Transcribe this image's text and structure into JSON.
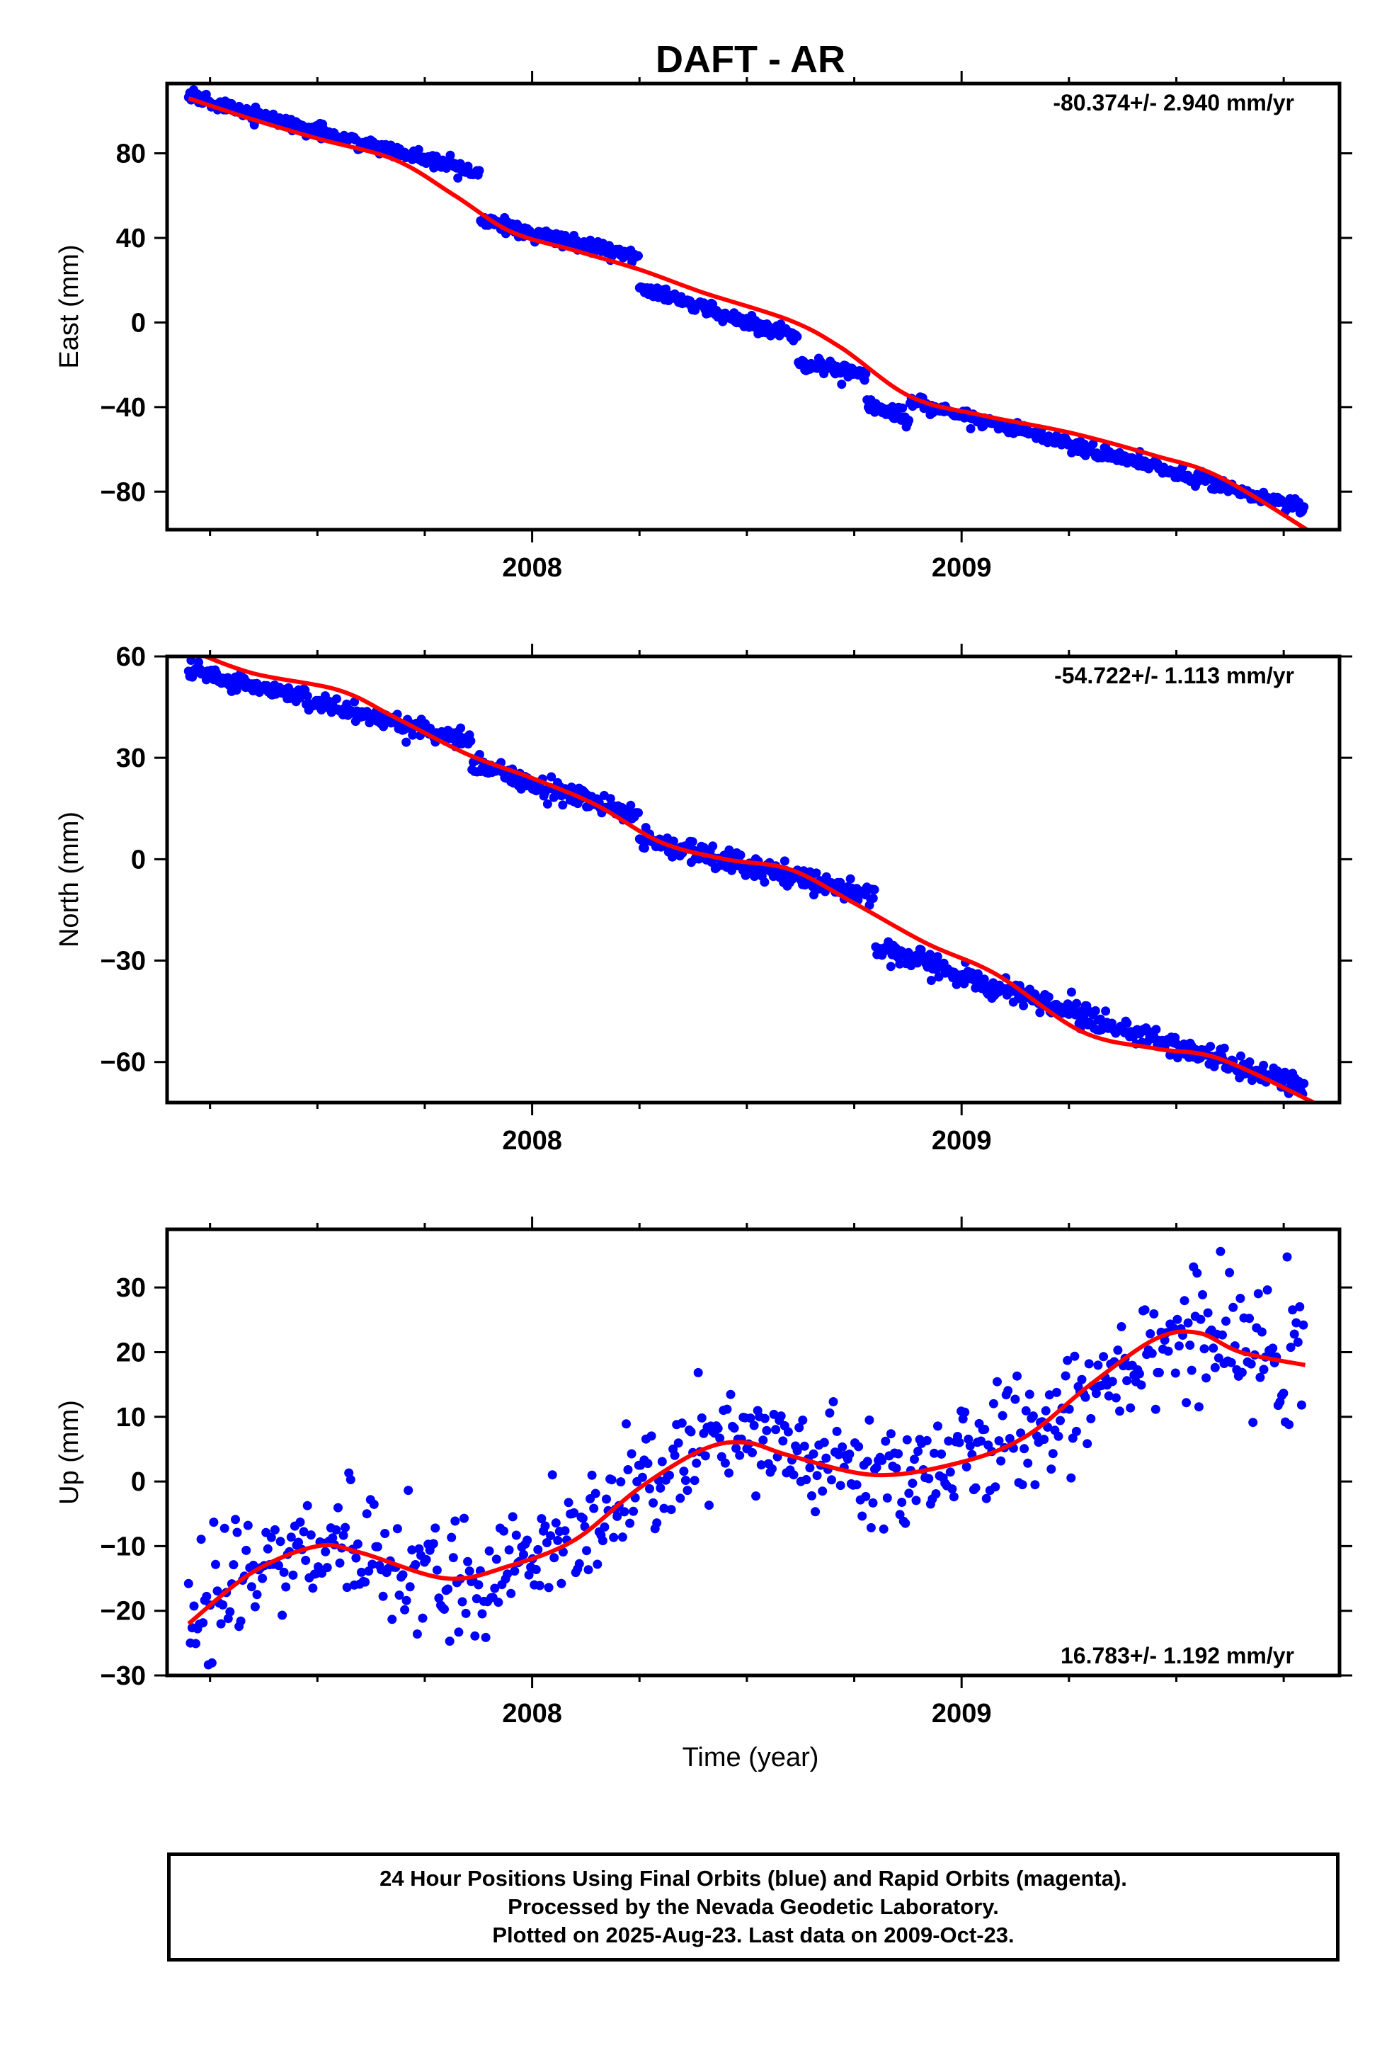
{
  "title": "DAFT - AR",
  "xlabel": "Time (year)",
  "footer": {
    "line1": "24 Hour Positions Using Final Orbits (blue) and Rapid Orbits (magenta).",
    "line2": "Processed by the Nevada Geodetic Laboratory.",
    "line3": "Plotted on 2025-Aug-23. Last data on 2009-Oct-23."
  },
  "colors": {
    "data": "#0000ff",
    "model": "#ff0000",
    "axes": "#000000",
    "background": "#ffffff"
  },
  "chart_data": [
    {
      "type": "scatter",
      "ylabel": "East (mm)",
      "rate_text": "-80.374+/- 2.940 mm/yr",
      "xlim": [
        2007.15,
        2009.88
      ],
      "ylim": [
        -98,
        113
      ],
      "yticks": [
        -80,
        -40,
        0,
        40,
        80
      ],
      "xticks": [
        2008,
        2009
      ],
      "fit": {
        "x": [
          2007.2,
          2007.35,
          2007.5,
          2007.68,
          2007.82,
          2007.95,
          2008.1,
          2008.25,
          2008.4,
          2008.6,
          2008.72,
          2008.88,
          2009.05,
          2009.25,
          2009.45,
          2009.6,
          2009.82
        ],
        "y": [
          106,
          96,
          87,
          77,
          60,
          43,
          34,
          25,
          14,
          1,
          -12,
          -35,
          -44,
          -52,
          -63,
          -73,
          -100
        ]
      },
      "series_points": {
        "segments": [
          {
            "x0": 2007.2,
            "x1": 2007.88,
            "y0": 107,
            "y1": 70,
            "noise": 1.6
          },
          {
            "x0": 2007.88,
            "x1": 2008.25,
            "y0": 48,
            "y1": 31,
            "noise": 1.6
          },
          {
            "x0": 2008.25,
            "x1": 2008.62,
            "y0": 16,
            "y1": -7,
            "noise": 1.6
          },
          {
            "x0": 2008.62,
            "x1": 2008.78,
            "y0": -19,
            "y1": -24,
            "noise": 1.5
          },
          {
            "x0": 2008.78,
            "x1": 2008.88,
            "y0": -38,
            "y1": -46,
            "noise": 2.0
          },
          {
            "x0": 2008.88,
            "x1": 2009.8,
            "y0": -37,
            "y1": -88,
            "noise": 1.6
          }
        ]
      }
    },
    {
      "type": "scatter",
      "ylabel": "North (mm)",
      "rate_text": "-54.722+/- 1.113 mm/yr",
      "xlim": [
        2007.15,
        2009.88
      ],
      "ylim": [
        -72,
        60
      ],
      "yticks": [
        -60,
        -30,
        0,
        30,
        60
      ],
      "xticks": [
        2008,
        2009
      ],
      "fit": {
        "x": [
          2007.2,
          2007.35,
          2007.55,
          2007.68,
          2007.85,
          2008.0,
          2008.15,
          2008.3,
          2008.45,
          2008.6,
          2008.75,
          2008.92,
          2009.08,
          2009.28,
          2009.45,
          2009.6,
          2009.82
        ],
        "y": [
          62,
          55,
          50,
          42,
          31,
          24,
          16,
          5,
          0,
          -3,
          -13,
          -25,
          -34,
          -51,
          -56,
          -59,
          -72
        ]
      },
      "series_points": {
        "segments": [
          {
            "x0": 2007.2,
            "x1": 2007.86,
            "y0": 56,
            "y1": 35,
            "noise": 1.5
          },
          {
            "x0": 2007.86,
            "x1": 2008.25,
            "y0": 28,
            "y1": 13,
            "noise": 1.5
          },
          {
            "x0": 2008.25,
            "x1": 2008.8,
            "y0": 6,
            "y1": -11,
            "noise": 1.7
          },
          {
            "x0": 2008.8,
            "x1": 2009.8,
            "y0": -26,
            "y1": -68,
            "noise": 1.6
          }
        ]
      }
    },
    {
      "type": "scatter",
      "ylabel": "Up (mm)",
      "rate_text": "16.783+/- 1.192 mm/yr",
      "xlim": [
        2007.15,
        2009.88
      ],
      "ylim": [
        -30,
        39
      ],
      "yticks": [
        -30,
        -20,
        -10,
        0,
        10,
        20,
        30
      ],
      "xticks": [
        2008,
        2009
      ],
      "fit": {
        "x": [
          2007.2,
          2007.35,
          2007.5,
          2007.6,
          2007.8,
          2007.95,
          2008.1,
          2008.25,
          2008.4,
          2008.5,
          2008.6,
          2008.8,
          2009.0,
          2009.15,
          2009.3,
          2009.45,
          2009.55,
          2009.65,
          2009.8
        ],
        "y": [
          -22,
          -14,
          -10,
          -11,
          -15,
          -13,
          -9,
          -1,
          5,
          6,
          4,
          1,
          3,
          7,
          15,
          22,
          23,
          20,
          18
        ]
      },
      "series_points": {
        "noise": 4.5,
        "count": 620
      }
    }
  ]
}
